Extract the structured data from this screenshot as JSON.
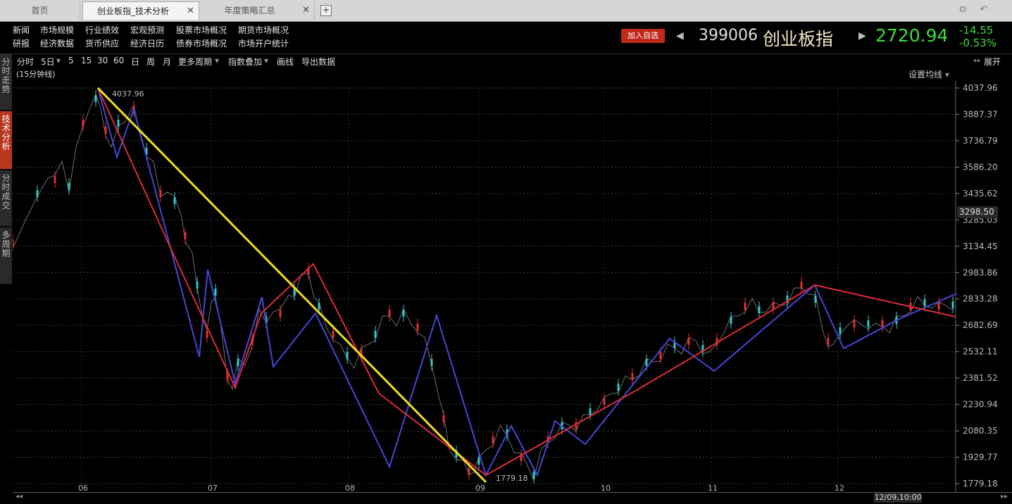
{
  "tabs": [
    {
      "label": "首页",
      "active": false
    },
    {
      "label": "创业板指_技术分析",
      "active": true
    },
    {
      "label": "年度策略汇总",
      "active": false
    }
  ],
  "new_tab_icon": "plus-icon",
  "menu": {
    "row1": [
      "新闻",
      "市场规模",
      "行业绩效",
      "宏观预测",
      "股票市场概况",
      "期货市场概况"
    ],
    "row2": [
      "研报",
      "经济数据",
      "货币供应",
      "经济日历",
      "债券市场概况",
      "市场开户统计"
    ]
  },
  "quote": {
    "add_favorite": "加入自选",
    "code": "399006",
    "name": "创业板指",
    "price": "2720.94",
    "change": "-14.55",
    "change_pct": "-0.53%",
    "price_color": "#3ddb3d",
    "name_color": "#f2e6c4"
  },
  "toolbar": {
    "items": [
      "分时",
      "5日",
      "5",
      "15",
      "30",
      "60",
      "日",
      "周",
      "月",
      "更多周期",
      "指数叠加",
      "画线",
      "导出数据"
    ],
    "expand": "展开"
  },
  "chart_subtitle": "(15分钟线)",
  "ma_setting": "设置均线",
  "left_nav": [
    {
      "label": "分时走势",
      "active": false
    },
    {
      "label": "技术分析",
      "active": true
    },
    {
      "label": "分时成交",
      "active": false
    },
    {
      "label": "多周期",
      "active": false
    }
  ],
  "current_value_label": "3298.50",
  "cursor_time": "12/09,10:00",
  "chart_data": {
    "type": "line",
    "title": "",
    "y_ticks": [
      "4037.96",
      "3887.37",
      "3736.79",
      "3586.20",
      "3435.62",
      "3285.03",
      "3134.45",
      "2983.86",
      "2833.28",
      "2682.69",
      "2532.11",
      "2381.52",
      "2230.94",
      "2080.35",
      "1929.77",
      "1779.18"
    ],
    "ylim": [
      1779.18,
      4037.96
    ],
    "x_ticks": [
      "06",
      "07",
      "08",
      "09",
      "10",
      "11",
      "12"
    ],
    "annotations": [
      {
        "text": "4037.96"
      },
      {
        "text": "1779.18"
      }
    ],
    "series": [
      {
        "color": "#4646d8",
        "x": [
          0.0,
          0.13,
          0.165,
          0.22,
          0.315,
          0.345,
          0.35,
          0.425,
          0.475,
          0.55,
          0.595,
          0.64,
          0.705,
          0.74,
          0.765,
          0.795,
          0.83,
          0.87,
          0.95,
          1.0,
          1.05,
          1.11,
          1.13
        ],
        "values": [
          4037.96,
          3630,
          3880,
          2540,
          2970,
          2630,
          2990,
          2860,
          2600,
          2760,
          2560,
          2430,
          2860,
          2990,
          2950,
          2880,
          2560,
          2630,
          2550,
          2690,
          2800,
          2880,
          2860
        ]
      },
      {
        "color": "#dd2a3a",
        "x": [
          0.0,
          0.13,
          0.165,
          0.22,
          0.315,
          0.34,
          0.35,
          0.425,
          0.475,
          0.55,
          0.6,
          0.64,
          0.705,
          0.74,
          0.765,
          0.795,
          0.83,
          0.87
        ],
        "values": [
          4037.96,
          3310,
          3780,
          2960,
          2800,
          2980,
          2790,
          2770,
          2700,
          2580,
          2690,
          2720,
          2840,
          2850,
          2790,
          2820,
          2830,
          2790
        ]
      },
      {
        "color": "#f0e020",
        "x": [
          0.0,
          1.0
        ],
        "values": [
          4037.96,
          1779.18
        ]
      }
    ],
    "grid": true,
    "legend": "none"
  },
  "icons": [
    "restore-window-icon",
    "back-arrow-icon",
    "chevron-left-icon",
    "chevron-right-icon",
    "scroll-left-icon",
    "scroll-right-icon"
  ]
}
